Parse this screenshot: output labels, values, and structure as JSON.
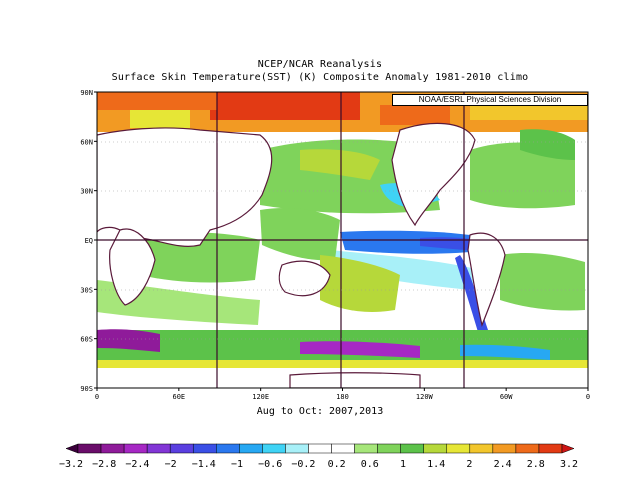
{
  "header": {
    "title": "NCEP/NCAR Reanalysis",
    "subtitle": "Surface Skin Temperature(SST) (K) Composite Anomaly 1981-2010 climo"
  },
  "credit": "NOAA/ESRL Physical Sciences Division",
  "period_label": "Aug to Oct: 2007,2013",
  "lat_ticks": [
    "90N",
    "60N",
    "30N",
    "EQ",
    "30S",
    "60S",
    "90S"
  ],
  "lon_ticks": [
    "0",
    "60E",
    "120E",
    "180",
    "120W",
    "60W",
    "0"
  ],
  "colorbar": {
    "labels": [
      "-3.2",
      "-2.8",
      "-2.4",
      "-2",
      "-1.4",
      "-1",
      "-0.6",
      "-0.2",
      "0.2",
      "0.6",
      "1",
      "1.4",
      "2",
      "2.4",
      "2.8",
      "3.2"
    ],
    "colors": [
      "#3b003b",
      "#6a0d6a",
      "#8f1b9a",
      "#a628c4",
      "#8236d6",
      "#5a3fe0",
      "#3a4fe6",
      "#2a78ef",
      "#27a8f3",
      "#3fd3f5",
      "#a8f0f8",
      "#ffffff",
      "#ffffff",
      "#a6e67a",
      "#7fd35b",
      "#5cc24a",
      "#b6d83a",
      "#e6e636",
      "#f2c62c",
      "#f29a23",
      "#ee6a1a",
      "#e23a14",
      "#cc1414"
    ]
  }
}
